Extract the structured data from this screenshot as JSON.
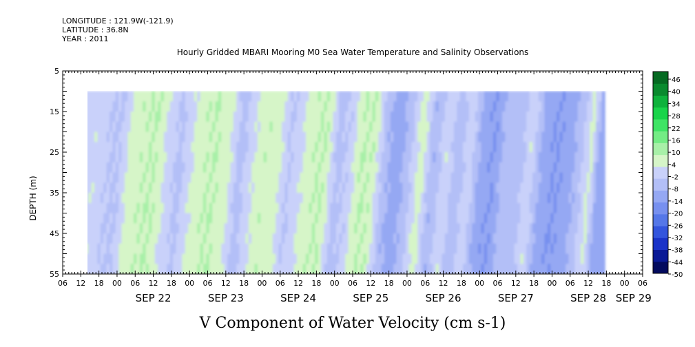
{
  "header": {
    "longitude": "LONGITUDE : 121.9W(-121.9)",
    "latitude": "LATITUDE : 36.8N",
    "year": "YEAR : 2011"
  },
  "chart_data": {
    "type": "heatmap",
    "title": "Hourly Gridded MBARI Mooring M0 Sea Water Temperature and Salinity Observations",
    "xlabel": "V Component of Water Velocity (cm s-1)",
    "ylabel": "DEPTH (m)",
    "ylim": [
      55,
      5
    ],
    "y_ticks": [
      5,
      15,
      25,
      35,
      45,
      55
    ],
    "x_hour_labels": [
      "06",
      "12",
      "18",
      "00",
      "06",
      "12",
      "18",
      "00",
      "06",
      "12",
      "18",
      "00",
      "06",
      "12",
      "18",
      "00",
      "06",
      "12",
      "18",
      "00",
      "06",
      "12",
      "18",
      "00",
      "06",
      "12",
      "18",
      "00",
      "06",
      "12",
      "18",
      "00",
      "06"
    ],
    "x_date_labels": [
      "SEP 22",
      "SEP 23",
      "SEP 24",
      "SEP 25",
      "SEP 26",
      "SEP 27",
      "SEP 28",
      "SEP 29"
    ],
    "data_depth_range": [
      10,
      55
    ],
    "data_time_range_hours": [
      13.5,
      185
    ],
    "colorbar": {
      "labels": [
        "46",
        "40",
        "34",
        "28",
        "22",
        "16",
        "10",
        "4",
        "-2",
        "-8",
        "-14",
        "-20",
        "-26",
        "-32",
        "-38",
        "-44",
        "-50"
      ],
      "min": -50,
      "max": 52,
      "colors": [
        "#030b5e",
        "#0a1a96",
        "#1a33c8",
        "#3355dd",
        "#5577e8",
        "#7790ef",
        "#95a8f3",
        "#b3bff7",
        "#c9d1fa",
        "#d6f5c8",
        "#a8f0a8",
        "#74ec85",
        "#3fe465",
        "#19d44a",
        "#0fb23c",
        "#0a8a2e",
        "#066a22"
      ]
    },
    "v_component_profile": {
      "hours": [
        14,
        18,
        22,
        26,
        30,
        34,
        38,
        42,
        46,
        50,
        54,
        58,
        62,
        66,
        70,
        74,
        78,
        82,
        86,
        90,
        94,
        98,
        102,
        106,
        110,
        114,
        118,
        122,
        126,
        130,
        134,
        138,
        142,
        146,
        150,
        154,
        158,
        162,
        166,
        170,
        174,
        178,
        182,
        185
      ],
      "values": [
        2,
        3,
        -2,
        -3,
        8,
        9,
        10,
        2,
        -4,
        4,
        9,
        10,
        6,
        -5,
        3,
        9,
        8,
        -3,
        3,
        9,
        10,
        -4,
        -1,
        10,
        9,
        -6,
        -12,
        -4,
        8,
        -8,
        3,
        -6,
        2,
        -12,
        -14,
        -4,
        -6,
        3,
        -10,
        -14,
        -12,
        -6,
        6,
        -12
      ]
    }
  }
}
